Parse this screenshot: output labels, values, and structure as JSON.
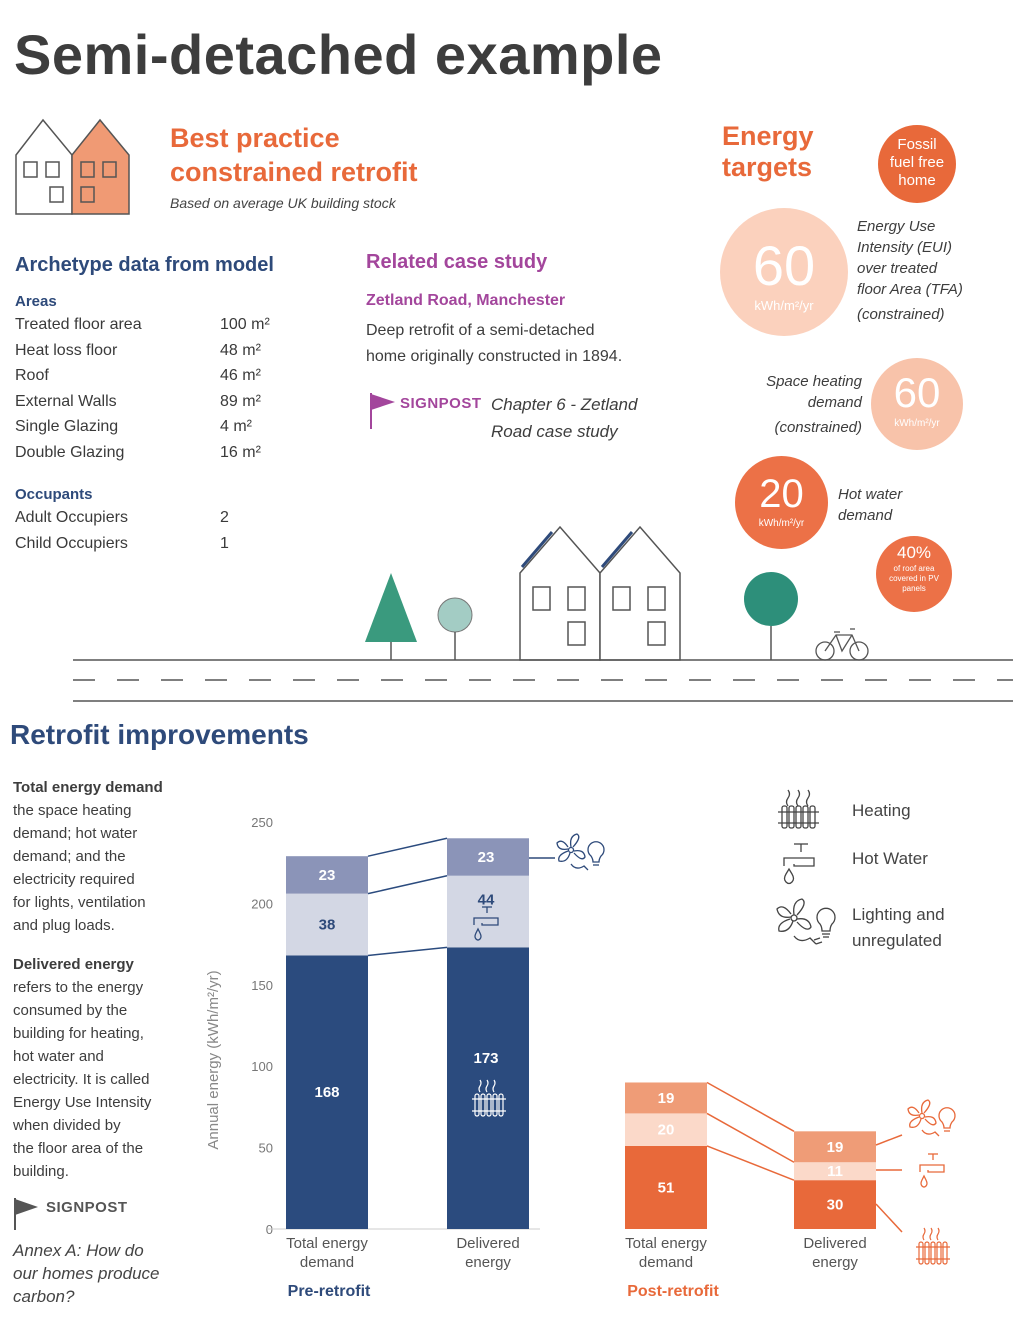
{
  "title": "Semi-detached example",
  "scenario": {
    "heading_line1": "Best practice",
    "heading_line2": "constrained retrofit",
    "subtitle": "Based on average UK building stock"
  },
  "archetype": {
    "heading": "Archetype data from model",
    "areas_heading": "Areas",
    "areas": [
      {
        "label": "Treated floor area",
        "value": "100 m²"
      },
      {
        "label": "Heat loss floor",
        "value": "48 m²"
      },
      {
        "label": "Roof",
        "value": "46 m²"
      },
      {
        "label": "External Walls",
        "value": "89 m²"
      },
      {
        "label": "Single Glazing",
        "value": "4 m²"
      },
      {
        "label": "Double Glazing",
        "value": "16 m²"
      }
    ],
    "occupants_heading": "Occupants",
    "occupants": [
      {
        "label": "Adult Occupiers",
        "value": "2"
      },
      {
        "label": "Child Occupiers",
        "value": "1"
      }
    ]
  },
  "case_study": {
    "heading": "Related case study",
    "name": "Zetland Road, Manchester",
    "desc_line1": "Deep retrofit of a semi-detached",
    "desc_line2": "home originally constructed in 1894.",
    "signpost_label": "SIGNPOST",
    "signpost_line1": "Chapter 6 - Zetland",
    "signpost_line2": "Road case study"
  },
  "targets": {
    "heading_line1": "Energy",
    "heading_line2": "targets",
    "fossil": {
      "line1": "Fossil",
      "line2": "fuel free",
      "line3": "home"
    },
    "eui": {
      "value": "60",
      "unit": "kWh/m²/yr",
      "l1": "Energy Use",
      "l2": "Intensity (EUI)",
      "l3": "over treated",
      "l4": "floor Area (TFA)",
      "l5": "(constrained)"
    },
    "space": {
      "value": "60",
      "unit": "kWh/m²/yr",
      "l1": "Space heating",
      "l2": "demand",
      "l3": "(constrained)"
    },
    "hotwater": {
      "value": "20",
      "unit": "kWh/m²/yr",
      "l1": "Hot water",
      "l2": "demand"
    },
    "pv": {
      "value": "40%",
      "l1": "of roof area",
      "l2": "covered in PV",
      "l3": "panels"
    }
  },
  "retrofit": {
    "heading": "Retrofit improvements",
    "ted_heading": "Total energy demand",
    "ted_lines": [
      "the space heating",
      "demand; hot water",
      "demand; and the",
      "electricity required",
      "for lights, ventilation",
      "and plug loads."
    ],
    "de_heading": "Delivered energy",
    "de_lines": [
      "refers to the energy",
      "consumed by the",
      "building for heating,",
      "hot water and",
      "electricity. It is called",
      "Energy Use Intensity",
      "when divided by",
      "the floor area of the",
      "building."
    ],
    "signpost_label": "SIGNPOST",
    "annex_lines": [
      "Annex A: How do",
      "our homes produce",
      "carbon?"
    ]
  },
  "legend": [
    {
      "icon": "radiator-icon",
      "label": "Heating"
    },
    {
      "icon": "tap-icon",
      "label": "Hot Water"
    },
    {
      "icon": "fan-bulb-icon",
      "label_line1": "Lighting and",
      "label_line2": "unregulated"
    }
  ],
  "colors": {
    "orange": "#e8693a",
    "navy": "#2e4a7a",
    "purple": "#a3469c",
    "pre_heating": "#2b4b7e",
    "pre_hotwater": "#d3d7e4",
    "pre_lighting": "#8b94b8",
    "post_heating": "#e8693a",
    "post_hotwater": "#fbd9c9",
    "post_lighting": "#ef9c77"
  },
  "chart_data": {
    "type": "bar",
    "stacked": true,
    "ylabel": "Annual energy (kWh/m²/yr)",
    "ylim": [
      0,
      250
    ],
    "yticks": [
      0,
      50,
      100,
      150,
      200,
      250
    ],
    "groups": [
      {
        "name": "Pre-retrofit",
        "categories": [
          "Total energy demand",
          "Delivered energy"
        ],
        "series": [
          {
            "name": "Heating",
            "values": [
              168,
              173
            ]
          },
          {
            "name": "Hot Water",
            "values": [
              38,
              44
            ]
          },
          {
            "name": "Lighting and unregulated",
            "values": [
              23,
              23
            ]
          }
        ]
      },
      {
        "name": "Post-retrofit",
        "categories": [
          "Total energy demand",
          "Delivered energy"
        ],
        "series": [
          {
            "name": "Heating",
            "values": [
              51,
              30
            ]
          },
          {
            "name": "Hot Water",
            "values": [
              20,
              11
            ]
          },
          {
            "name": "Lighting and unregulated",
            "values": [
              19,
              19
            ]
          }
        ]
      }
    ]
  }
}
